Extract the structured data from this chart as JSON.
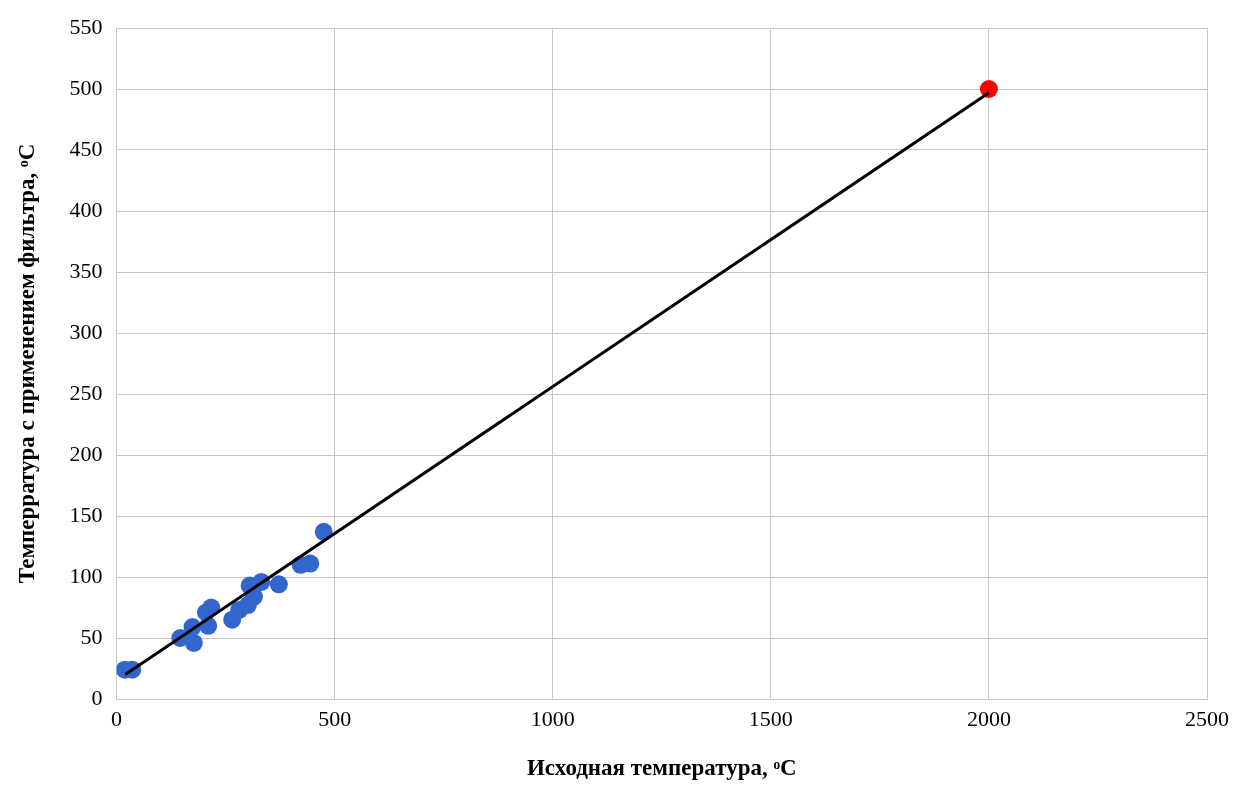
{
  "chart_data": {
    "type": "scatter",
    "xlabel": "Исходная температура, ᵒC",
    "ylabel": "Темперратура с применением фильтра, ᵒC",
    "xlim": [
      0,
      2500
    ],
    "xticks": [
      0,
      500,
      1000,
      1500,
      2000,
      2500
    ],
    "ylim": [
      0,
      550
    ],
    "yticks": [
      0,
      50,
      100,
      150,
      200,
      250,
      300,
      350,
      400,
      450,
      500,
      550
    ],
    "grid": true,
    "legend": false,
    "marker": "circle",
    "series": [
      {
        "color": "#3366cc",
        "x": [
          19,
          36,
          146,
          174,
          177,
          205,
          217,
          210,
          265,
          281,
          301,
          315,
          305,
          332,
          372,
          422,
          444,
          475
        ],
        "values": [
          24,
          24,
          50,
          59,
          46,
          71,
          75,
          60,
          65,
          73,
          77,
          84,
          93,
          96,
          94,
          110,
          111,
          137
        ]
      },
      {
        "color": "#ff0000",
        "x": [
          2000
        ],
        "values": [
          500
        ]
      },
      {
        "type": "line",
        "color": "#000000",
        "marker": "none",
        "x": [
          20,
          2000
        ],
        "values": [
          20,
          497
        ]
      }
    ]
  }
}
